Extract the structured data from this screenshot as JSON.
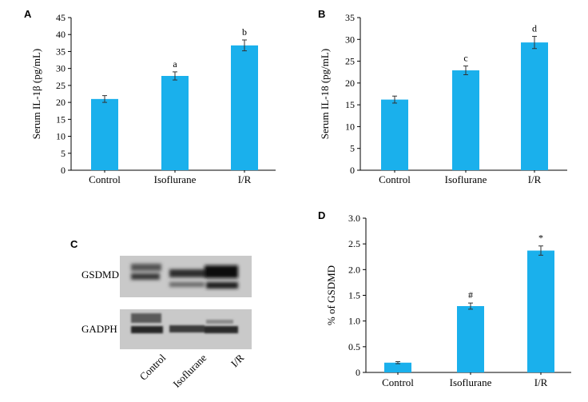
{
  "panel_letters": {
    "a": "A",
    "b": "B",
    "c": "C",
    "d": "D"
  },
  "bar_color": "#1ab0ec",
  "blot": {
    "row_labels": [
      "GSDMD",
      "GADPH"
    ],
    "lane_labels": [
      "Control",
      "Isoflurane",
      "I/R"
    ]
  },
  "chart_data": [
    {
      "type": "bar",
      "panel": "A",
      "ylabel": "Serum IL-1β (pg/mL)",
      "categories": [
        "Control",
        "Isoflurane",
        "I/R"
      ],
      "values": [
        21,
        27.8,
        36.8
      ],
      "errors": [
        1.0,
        1.2,
        1.6
      ],
      "annotations": [
        "",
        "a",
        "b"
      ],
      "ylim": [
        0,
        45
      ],
      "yticks": [
        0,
        5,
        10,
        15,
        20,
        25,
        30,
        35,
        40,
        45
      ]
    },
    {
      "type": "bar",
      "panel": "B",
      "ylabel": "Serum IL-18 (pg/mL)",
      "categories": [
        "Control",
        "Isoflurane",
        "I/R"
      ],
      "values": [
        16.2,
        22.9,
        29.3
      ],
      "errors": [
        0.8,
        1.0,
        1.4
      ],
      "annotations": [
        "",
        "c",
        "d"
      ],
      "ylim": [
        0,
        35
      ],
      "yticks": [
        0,
        5,
        10,
        15,
        20,
        25,
        30,
        35
      ]
    },
    {
      "type": "bar",
      "panel": "D",
      "ylabel": "% of GSDMD",
      "categories": [
        "Control",
        "Isoflurane",
        "I/R"
      ],
      "values": [
        0.19,
        1.29,
        2.37
      ],
      "errors": [
        0.02,
        0.06,
        0.09
      ],
      "annotations": [
        "",
        "#",
        "*"
      ],
      "ylim": [
        0,
        3.0
      ],
      "yticks": [
        "0",
        "0.5",
        "1.0",
        "1.5",
        "2.0",
        "2.5",
        "3.0"
      ]
    }
  ]
}
